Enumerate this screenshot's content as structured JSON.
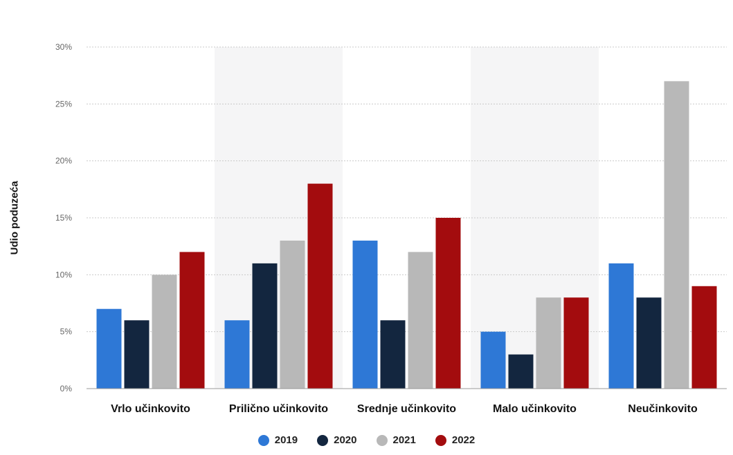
{
  "chart_data": {
    "type": "bar",
    "ylabel": "Udio poduzeća",
    "xlabel": "",
    "ylim": [
      0,
      30
    ],
    "yticks": [
      "0%",
      "5%",
      "10%",
      "15%",
      "20%",
      "25%",
      "30%"
    ],
    "categories": [
      "Vrlo učinkovito",
      "Prilično učinkovito",
      "Srednje učinkovito",
      "Malo učinkovito",
      "Neučinkovito"
    ],
    "series": [
      {
        "name": "2019",
        "color": "#2e78d6",
        "values": [
          7,
          6,
          13,
          5,
          11
        ]
      },
      {
        "name": "2020",
        "color": "#13263f",
        "values": [
          6,
          11,
          6,
          3,
          8
        ]
      },
      {
        "name": "2021",
        "color": "#b8b8b8",
        "values": [
          10,
          13,
          12,
          8,
          27
        ]
      },
      {
        "name": "2022",
        "color": "#a30c0e",
        "values": [
          12,
          18,
          15,
          8,
          9
        ]
      }
    ],
    "grid": true,
    "legend_position": "bottom-center"
  }
}
